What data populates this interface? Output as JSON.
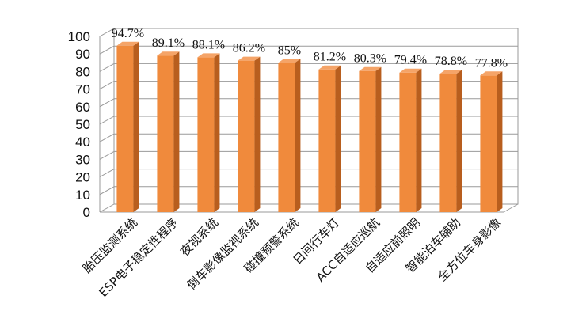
{
  "chart_data": {
    "type": "bar",
    "style": "3d-columns",
    "categories": [
      "胎压监测系统",
      "ESP电子稳定性程序",
      "夜视系统",
      "倒车影像监视系统",
      "碰撞预警系统",
      "日间行车灯",
      "ACC自适应巡航",
      "自适应前照明",
      "智能泊车辅助",
      "全方位车身影像"
    ],
    "values": [
      94.7,
      89.1,
      88.1,
      86.2,
      85,
      81.2,
      80.3,
      79.4,
      78.8,
      77.8
    ],
    "data_labels": [
      "94.7%",
      "89.1%",
      "88.1%",
      "86.2%",
      "85%",
      "81.2%",
      "80.3%",
      "79.4%",
      "78.8%",
      "77.8%"
    ],
    "yticks": [
      "0",
      "10",
      "20",
      "30",
      "40",
      "50",
      "60",
      "70",
      "80",
      "90",
      "100"
    ],
    "ylim": [
      0,
      100
    ],
    "grid": true,
    "colors": {
      "bar_front": "#F08A3C",
      "bar_side": "#B85E1E",
      "bar_top": "#F5A468",
      "grid": "#9a9a9a"
    }
  }
}
